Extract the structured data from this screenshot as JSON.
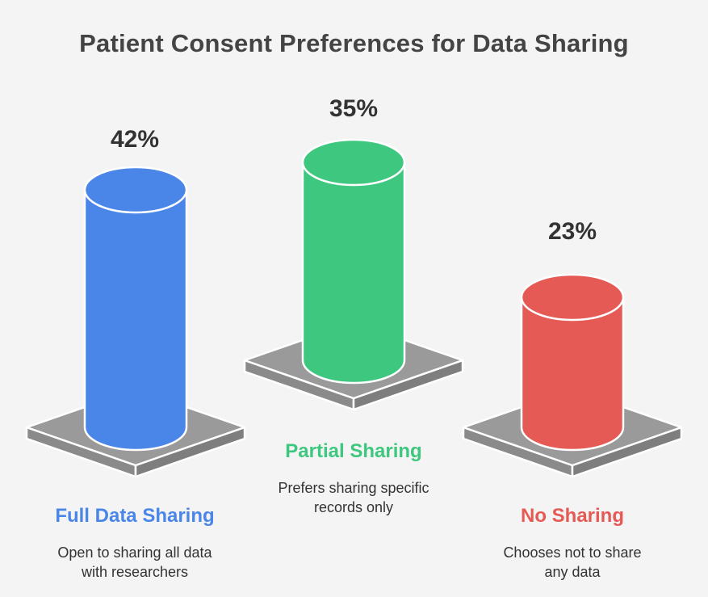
{
  "chart_data": {
    "type": "bar",
    "title": "Patient Consent Preferences for Data Sharing",
    "categories": [
      "Full Data Sharing",
      "Partial Sharing",
      "No Sharing"
    ],
    "values": [
      42,
      35,
      23
    ],
    "value_labels": [
      "42%",
      "35%",
      "23%"
    ],
    "descriptions": [
      [
        "Open to sharing all data",
        "with researchers"
      ],
      [
        "Prefers sharing specific",
        "records only"
      ],
      [
        "Chooses not to share",
        "any data"
      ]
    ],
    "colors": [
      "#4a86e8",
      "#3ec77f",
      "#e55a55"
    ],
    "ylim": [
      0,
      42
    ],
    "grid": false,
    "legend": "none"
  }
}
